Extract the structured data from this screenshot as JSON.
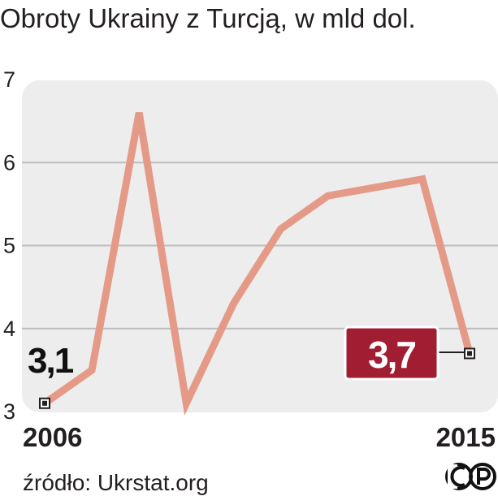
{
  "title": "Obroty Ukrainy z Turcją, w mld dol.",
  "source": "źródło: Ukrstat.org",
  "logo": "CP",
  "chart_data": {
    "type": "line",
    "title": "Obroty Ukrainy z Turcją, w mld dol.",
    "x": [
      2006,
      2007,
      2008,
      2009,
      2010,
      2011,
      2012,
      2013,
      2014,
      2015
    ],
    "series": [
      {
        "values": [
          3.1,
          3.5,
          6.6,
          3.1,
          4.3,
          5.2,
          5.6,
          5.7,
          5.8,
          3.7
        ]
      }
    ],
    "xlabel": "",
    "ylabel": "",
    "ylim": [
      3,
      7
    ],
    "yticks": [
      "3",
      "4",
      "5",
      "6",
      "7"
    ],
    "xtick_labels": [
      "2006",
      "2015"
    ],
    "start_label": "3,1",
    "end_label": "3,7",
    "grid": true,
    "colors": {
      "line": "#e49a86",
      "plot_bg": "#ededed",
      "grid": "#bdbdbd",
      "end_label_bg": "#a01d32"
    }
  }
}
